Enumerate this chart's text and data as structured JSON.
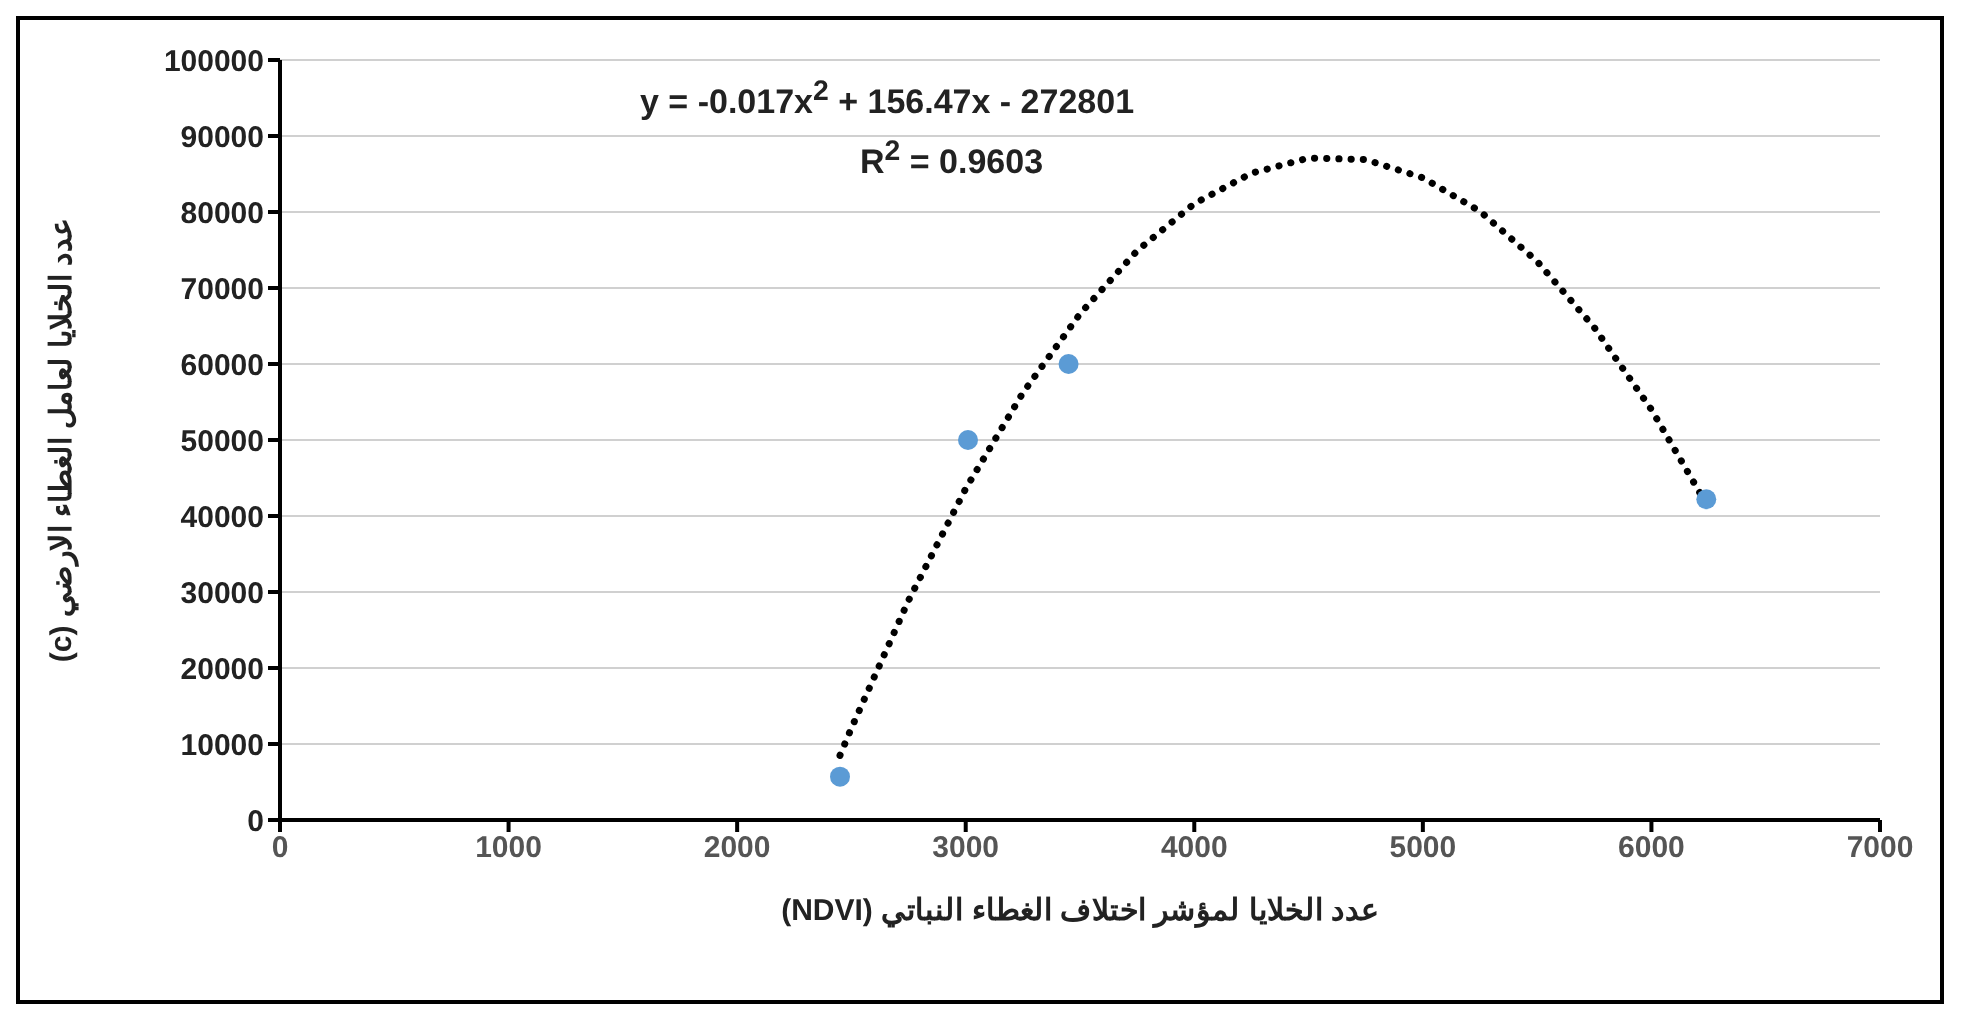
{
  "chart_data": {
    "type": "scatter",
    "xlabel": "عدد الخلايا لمؤشر اختلاف الغطاء النباتي  (NDVI)",
    "ylabel": "عدد الخلايا لعامل الغطاء الارضي (c)",
    "xlim": [
      0,
      7000
    ],
    "xticks": [
      0,
      1000,
      2000,
      3000,
      4000,
      5000,
      6000,
      7000
    ],
    "ylim": [
      0,
      100000
    ],
    "yticks": [
      0,
      10000,
      20000,
      30000,
      40000,
      50000,
      60000,
      70000,
      80000,
      90000,
      100000
    ],
    "grid": "y",
    "marker": "circle",
    "series": [
      {
        "color": "#5b9bd5",
        "x": [
          2450,
          3010,
          3450,
          6240
        ],
        "values": [
          5700,
          50000,
          60000,
          42200
        ]
      },
      {
        "type": "line",
        "color": "#000000",
        "line_style": "dotted",
        "marker": "none",
        "x": [
          2450,
          2500,
          2750,
          3000,
          3250,
          3500,
          3750,
          4000,
          4250,
          4500,
          4750,
          5000,
          5250,
          5500,
          5750,
          6000,
          6240
        ],
        "values": [
          8500,
          12100,
          28900,
          43600,
          56200,
          66600,
          74900,
          81100,
          85100,
          87100,
          86900,
          84500,
          80100,
          73500,
          64800,
          54000,
          41600
        ]
      }
    ],
    "annotations": [
      "y = -0.017x$^{2}$ + 156.47x - 272801",
      "R$^{2}$ = 0.9603"
    ]
  }
}
